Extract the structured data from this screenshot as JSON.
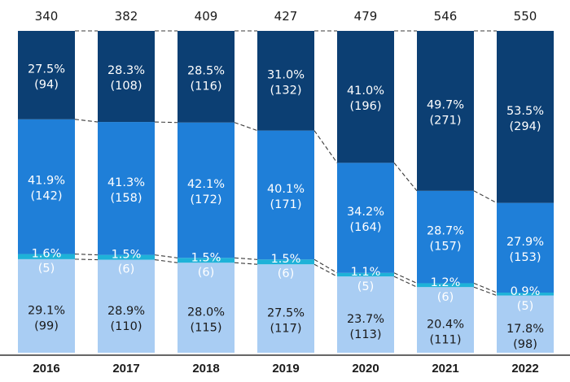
{
  "chart_data": {
    "type": "bar",
    "stacked": "percent",
    "categories": [
      "2016",
      "2017",
      "2018",
      "2019",
      "2020",
      "2021",
      "2022"
    ],
    "totals": [
      "340",
      "382",
      "409",
      "427",
      "479",
      "546",
      "550"
    ],
    "series": [
      {
        "color": "#a9cdf3",
        "text_color": "#1a1a1a",
        "values": [
          29.1,
          28.9,
          28.0,
          27.5,
          23.7,
          20.4,
          17.8
        ],
        "pct_labels": [
          "29.1%",
          "28.9%",
          "28.0%",
          "27.5%",
          "23.7%",
          "20.4%",
          "17.8%"
        ],
        "count_labels": [
          "(99)",
          "(110)",
          "(115)",
          "(117)",
          "(113)",
          "(111)",
          "(98)"
        ]
      },
      {
        "color": "#1eb2d8",
        "text_color": "#ffffff",
        "values": [
          1.6,
          1.5,
          1.5,
          1.5,
          1.1,
          1.2,
          0.9
        ],
        "pct_labels": [
          "1.6%",
          "1.5%",
          "1.5%",
          "1.5%",
          "1.1%",
          "1.2%",
          "0.9%"
        ],
        "count_labels": [
          "(5)",
          "(6)",
          "(6)",
          "(6)",
          "(5)",
          "(6)",
          "(5)"
        ]
      },
      {
        "color": "#1f7fd8",
        "text_color": "#ffffff",
        "values": [
          41.9,
          41.3,
          42.1,
          40.1,
          34.2,
          28.7,
          27.9
        ],
        "pct_labels": [
          "41.9%",
          "41.3%",
          "42.1%",
          "40.1%",
          "34.2%",
          "28.7%",
          "27.9%"
        ],
        "count_labels": [
          "(142)",
          "(158)",
          "(172)",
          "(171)",
          "(164)",
          "(157)",
          "(153)"
        ]
      },
      {
        "color": "#0c3f73",
        "text_color": "#ffffff",
        "values": [
          27.5,
          28.3,
          28.5,
          31.0,
          41.0,
          49.7,
          53.5
        ],
        "pct_labels": [
          "27.5%",
          "28.3%",
          "28.5%",
          "31.0%",
          "41.0%",
          "49.7%",
          "53.5%"
        ],
        "count_labels": [
          "(94)",
          "(108)",
          "(116)",
          "(132)",
          "(196)",
          "(271)",
          "(294)"
        ]
      }
    ],
    "connector_lines": true,
    "grid": false,
    "legend": "none",
    "ylim": [
      0,
      100
    ]
  }
}
